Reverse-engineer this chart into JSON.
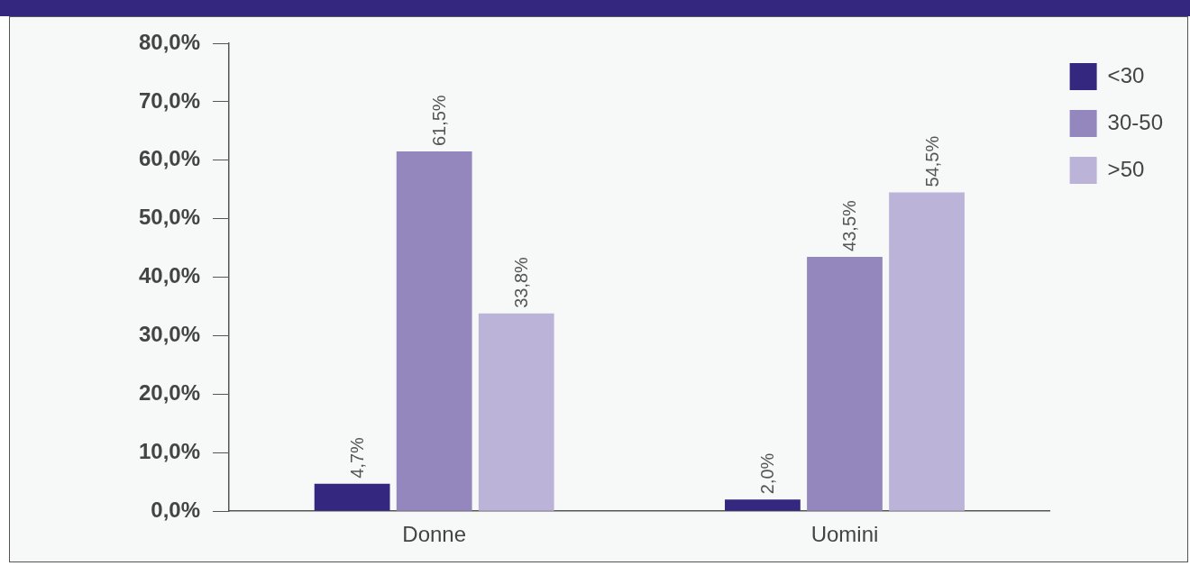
{
  "chart_data": {
    "type": "bar",
    "categories": [
      "Donne",
      "Uomini"
    ],
    "series": [
      {
        "name": "<30",
        "color": "#33277f",
        "values": [
          4.7,
          2.0
        ],
        "value_labels": [
          "4,7%",
          "2,0%"
        ]
      },
      {
        "name": "30-50",
        "color": "#9487be",
        "values": [
          61.5,
          43.5
        ],
        "value_labels": [
          "61,5%",
          "43,5%"
        ]
      },
      {
        "name": ">50",
        "color": "#bcb3d9",
        "values": [
          33.8,
          54.5
        ],
        "value_labels": [
          "33,8%",
          "54,5%"
        ]
      }
    ],
    "ylim": [
      0,
      80
    ],
    "yticks": [
      {
        "value": 0,
        "label": "0,0%"
      },
      {
        "value": 10,
        "label": "10,0%"
      },
      {
        "value": 20,
        "label": "20,0%"
      },
      {
        "value": 30,
        "label": "30,0%"
      },
      {
        "value": 40,
        "label": "40,0%"
      },
      {
        "value": 50,
        "label": "50,0%"
      },
      {
        "value": 60,
        "label": "60,0%"
      },
      {
        "value": 70,
        "label": "70,0%"
      },
      {
        "value": 80,
        "label": "80,0%"
      }
    ],
    "grid": false,
    "legend": "top right"
  }
}
